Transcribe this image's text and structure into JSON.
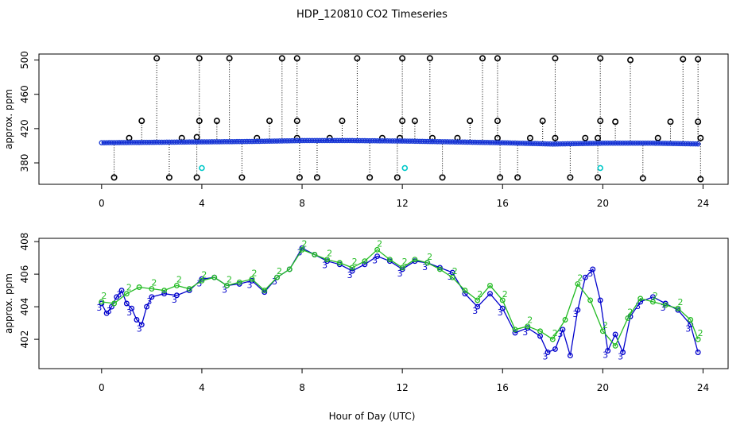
{
  "title": "HDP_120810  CO2 Timeseries",
  "xlabel": "Hour of Day (UTC)",
  "chart_data": [
    {
      "type": "scatter",
      "panel": "top",
      "ylabel": "approx. ppm",
      "xlim": [
        -2.5,
        25
      ],
      "ylim": [
        355,
        507
      ],
      "xticks": [
        0,
        4,
        8,
        12,
        16,
        20,
        24
      ],
      "xtick_labels": [
        "0",
        "4",
        "8",
        "12",
        "16",
        "20",
        "24"
      ],
      "yticks": [
        380,
        420,
        460,
        500
      ],
      "ytick_labels": [
        "380",
        "420",
        "460",
        "500"
      ],
      "spike_high_x": [
        2.2,
        3.9,
        5.1,
        7.2,
        7.8,
        10.2,
        12.0,
        13.1,
        15.2,
        15.8,
        18.1,
        19.9,
        21.1,
        23.2,
        23.8
      ],
      "spike_high_y": [
        502,
        502,
        502,
        502,
        502,
        502,
        502,
        502,
        502,
        502,
        502,
        502,
        500,
        501,
        501
      ],
      "spike_mid_x": [
        1.6,
        3.9,
        4.6,
        6.7,
        7.8,
        9.6,
        12.0,
        12.5,
        14.7,
        15.8,
        17.6,
        19.9,
        20.5,
        22.7,
        23.8
      ],
      "spike_mid_y": [
        429,
        429,
        429,
        429,
        429,
        429,
        429,
        429,
        429,
        429,
        429,
        429,
        428,
        428,
        428
      ],
      "spike_small_x": [
        1.1,
        3.2,
        3.8,
        6.2,
        7.8,
        9.1,
        11.2,
        11.9,
        13.2,
        14.2,
        15.8,
        17.1,
        18.1,
        19.3,
        19.8,
        22.2,
        23.9
      ],
      "spike_small_y": [
        409,
        409,
        410,
        409,
        409,
        409,
        409,
        409,
        409,
        409,
        409,
        409,
        409,
        409,
        409,
        409,
        409
      ],
      "spike_low_x": [
        0.5,
        2.7,
        3.8,
        5.6,
        7.9,
        8.6,
        10.7,
        11.8,
        13.6,
        15.9,
        16.6,
        18.7,
        19.8,
        21.6,
        23.9
      ],
      "spike_low_y": [
        363,
        363,
        363,
        363,
        363,
        363,
        363,
        363,
        363,
        363,
        363,
        363,
        363,
        362,
        361
      ],
      "cyan_x": [
        4.0,
        12.1,
        19.9
      ],
      "cyan_y": [
        374,
        374,
        374
      ],
      "baseline_x": [
        0,
        2,
        4,
        6,
        8,
        10,
        12,
        14,
        16,
        18,
        20,
        22,
        24
      ],
      "baseline_y": [
        403.5,
        404,
        404.5,
        405,
        406,
        406,
        405.5,
        404.5,
        403.5,
        402,
        403,
        403,
        402
      ],
      "colors": {
        "spike": "#000000",
        "baseline_line": "#0000cc",
        "baseline_marker": "#1f3fd6",
        "cyan": "#00c8c8"
      }
    },
    {
      "type": "line",
      "panel": "bottom",
      "ylabel": "approx. ppm",
      "xlim": [
        -2.5,
        25
      ],
      "ylim": [
        400.2,
        408.2
      ],
      "xticks": [
        0,
        4,
        8,
        12,
        16,
        20,
        24
      ],
      "xtick_labels": [
        "0",
        "4",
        "8",
        "12",
        "16",
        "20",
        "24"
      ],
      "yticks": [
        402,
        404,
        406,
        408
      ],
      "ytick_labels": [
        "402",
        "404",
        "406",
        "408"
      ],
      "series": [
        {
          "name": "3",
          "color": "#0000cc",
          "x": [
            0,
            0.2,
            0.4,
            0.6,
            0.8,
            1.0,
            1.2,
            1.4,
            1.6,
            1.8,
            2.0,
            2.5,
            3.0,
            3.5,
            4.0,
            4.5,
            5.0,
            5.5,
            6.0,
            6.5,
            7.0,
            7.5,
            8.0,
            8.5,
            9.0,
            9.5,
            10.0,
            10.5,
            11.0,
            11.5,
            12.0,
            12.5,
            13.0,
            13.5,
            14.0,
            14.5,
            15.0,
            15.5,
            16.0,
            16.5,
            17.0,
            17.5,
            17.8,
            18.1,
            18.4,
            18.7,
            19.0,
            19.3,
            19.6,
            19.9,
            20.2,
            20.5,
            20.8,
            21.1,
            21.5,
            22.0,
            22.5,
            23.0,
            23.5,
            23.8
          ],
          "y": [
            404.2,
            403.6,
            404.0,
            404.6,
            405.0,
            404.2,
            403.9,
            403.2,
            402.9,
            404.0,
            404.6,
            404.8,
            404.7,
            405.0,
            405.7,
            405.8,
            405.3,
            405.4,
            405.6,
            404.9,
            405.8,
            406.3,
            407.6,
            407.2,
            406.8,
            406.6,
            406.2,
            406.6,
            407.1,
            406.8,
            406.3,
            406.8,
            406.7,
            406.4,
            406.1,
            404.8,
            404.0,
            404.8,
            403.9,
            402.4,
            402.7,
            402.2,
            401.2,
            401.4,
            402.6,
            401.0,
            403.8,
            405.8,
            406.3,
            404.4,
            401.3,
            402.3,
            401.2,
            403.4,
            404.3,
            404.6,
            404.2,
            403.8,
            402.9,
            401.2
          ]
        },
        {
          "name": "2",
          "color": "#22bb22",
          "x": [
            0,
            0.5,
            1.0,
            1.5,
            2.0,
            2.5,
            3.0,
            3.5,
            4.0,
            4.5,
            5.0,
            5.5,
            6.0,
            6.5,
            7.0,
            7.5,
            8.0,
            8.5,
            9.0,
            9.5,
            10.0,
            10.5,
            11.0,
            11.5,
            12.0,
            12.5,
            13.0,
            13.5,
            14.0,
            14.5,
            15.0,
            15.5,
            16.0,
            16.5,
            17.0,
            17.5,
            18.0,
            18.5,
            19.0,
            19.5,
            20.0,
            20.5,
            21.0,
            21.5,
            22.0,
            22.5,
            23.0,
            23.5,
            23.8
          ],
          "y": [
            404.3,
            404.2,
            404.8,
            405.2,
            405.1,
            405.0,
            405.3,
            405.1,
            405.6,
            405.8,
            405.3,
            405.5,
            405.7,
            405.0,
            405.8,
            406.3,
            407.5,
            407.2,
            406.9,
            406.7,
            406.4,
            406.8,
            407.5,
            406.9,
            406.4,
            406.9,
            406.7,
            406.3,
            405.8,
            405.0,
            404.4,
            405.3,
            404.4,
            402.6,
            402.8,
            402.5,
            402.0,
            403.2,
            405.4,
            404.4,
            402.5,
            401.6,
            403.3,
            404.5,
            404.3,
            404.1,
            403.9,
            403.2,
            402.0
          ]
        }
      ]
    }
  ]
}
